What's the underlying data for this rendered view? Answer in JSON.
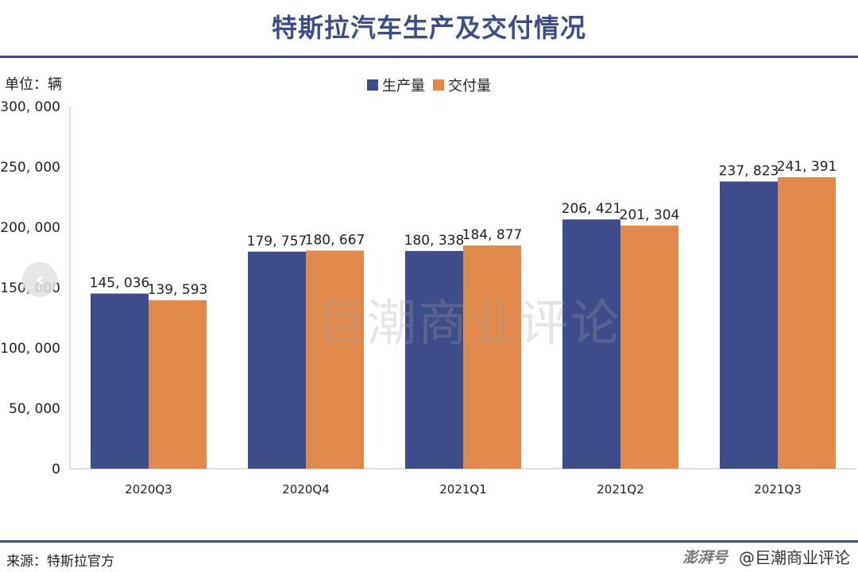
{
  "header": {
    "title": "特斯拉汽车生产及交付情况"
  },
  "unit_label": "单位：辆",
  "source_label": "来源：特斯拉官方",
  "credit": {
    "brand": "澎湃号",
    "account": "@巨潮商业评论"
  },
  "watermark": "巨潮商业评论",
  "nav": {
    "prev_icon": "chevron-left-icon"
  },
  "colors": {
    "production": "#3e4c89",
    "delivery": "#e0894a",
    "accent": "#3d4d8a"
  },
  "chart_data": {
    "type": "bar",
    "categories": [
      "2020Q3",
      "2020Q4",
      "2021Q1",
      "2021Q2",
      "2021Q3"
    ],
    "series": [
      {
        "name": "生产量",
        "values": [
          145036,
          179757,
          180338,
          206421,
          237823
        ],
        "labels": [
          "145, 036",
          "179, 757",
          "180, 338",
          "206, 421",
          "237, 823"
        ]
      },
      {
        "name": "交付量",
        "values": [
          139593,
          180667,
          184877,
          201304,
          241391
        ],
        "labels": [
          "139, 593",
          "180, 667",
          "184, 877",
          "201, 304",
          "241, 391"
        ]
      }
    ],
    "yticks": [
      0,
      50000,
      100000,
      150000,
      200000,
      250000,
      300000
    ],
    "ytick_labels": [
      "0",
      "50, 000",
      "100, 000",
      "150, 000",
      "200, 000",
      "250, 000",
      "300, 000"
    ],
    "ylim": [
      0,
      300000
    ],
    "legend_position": "top-center",
    "grid": false
  }
}
